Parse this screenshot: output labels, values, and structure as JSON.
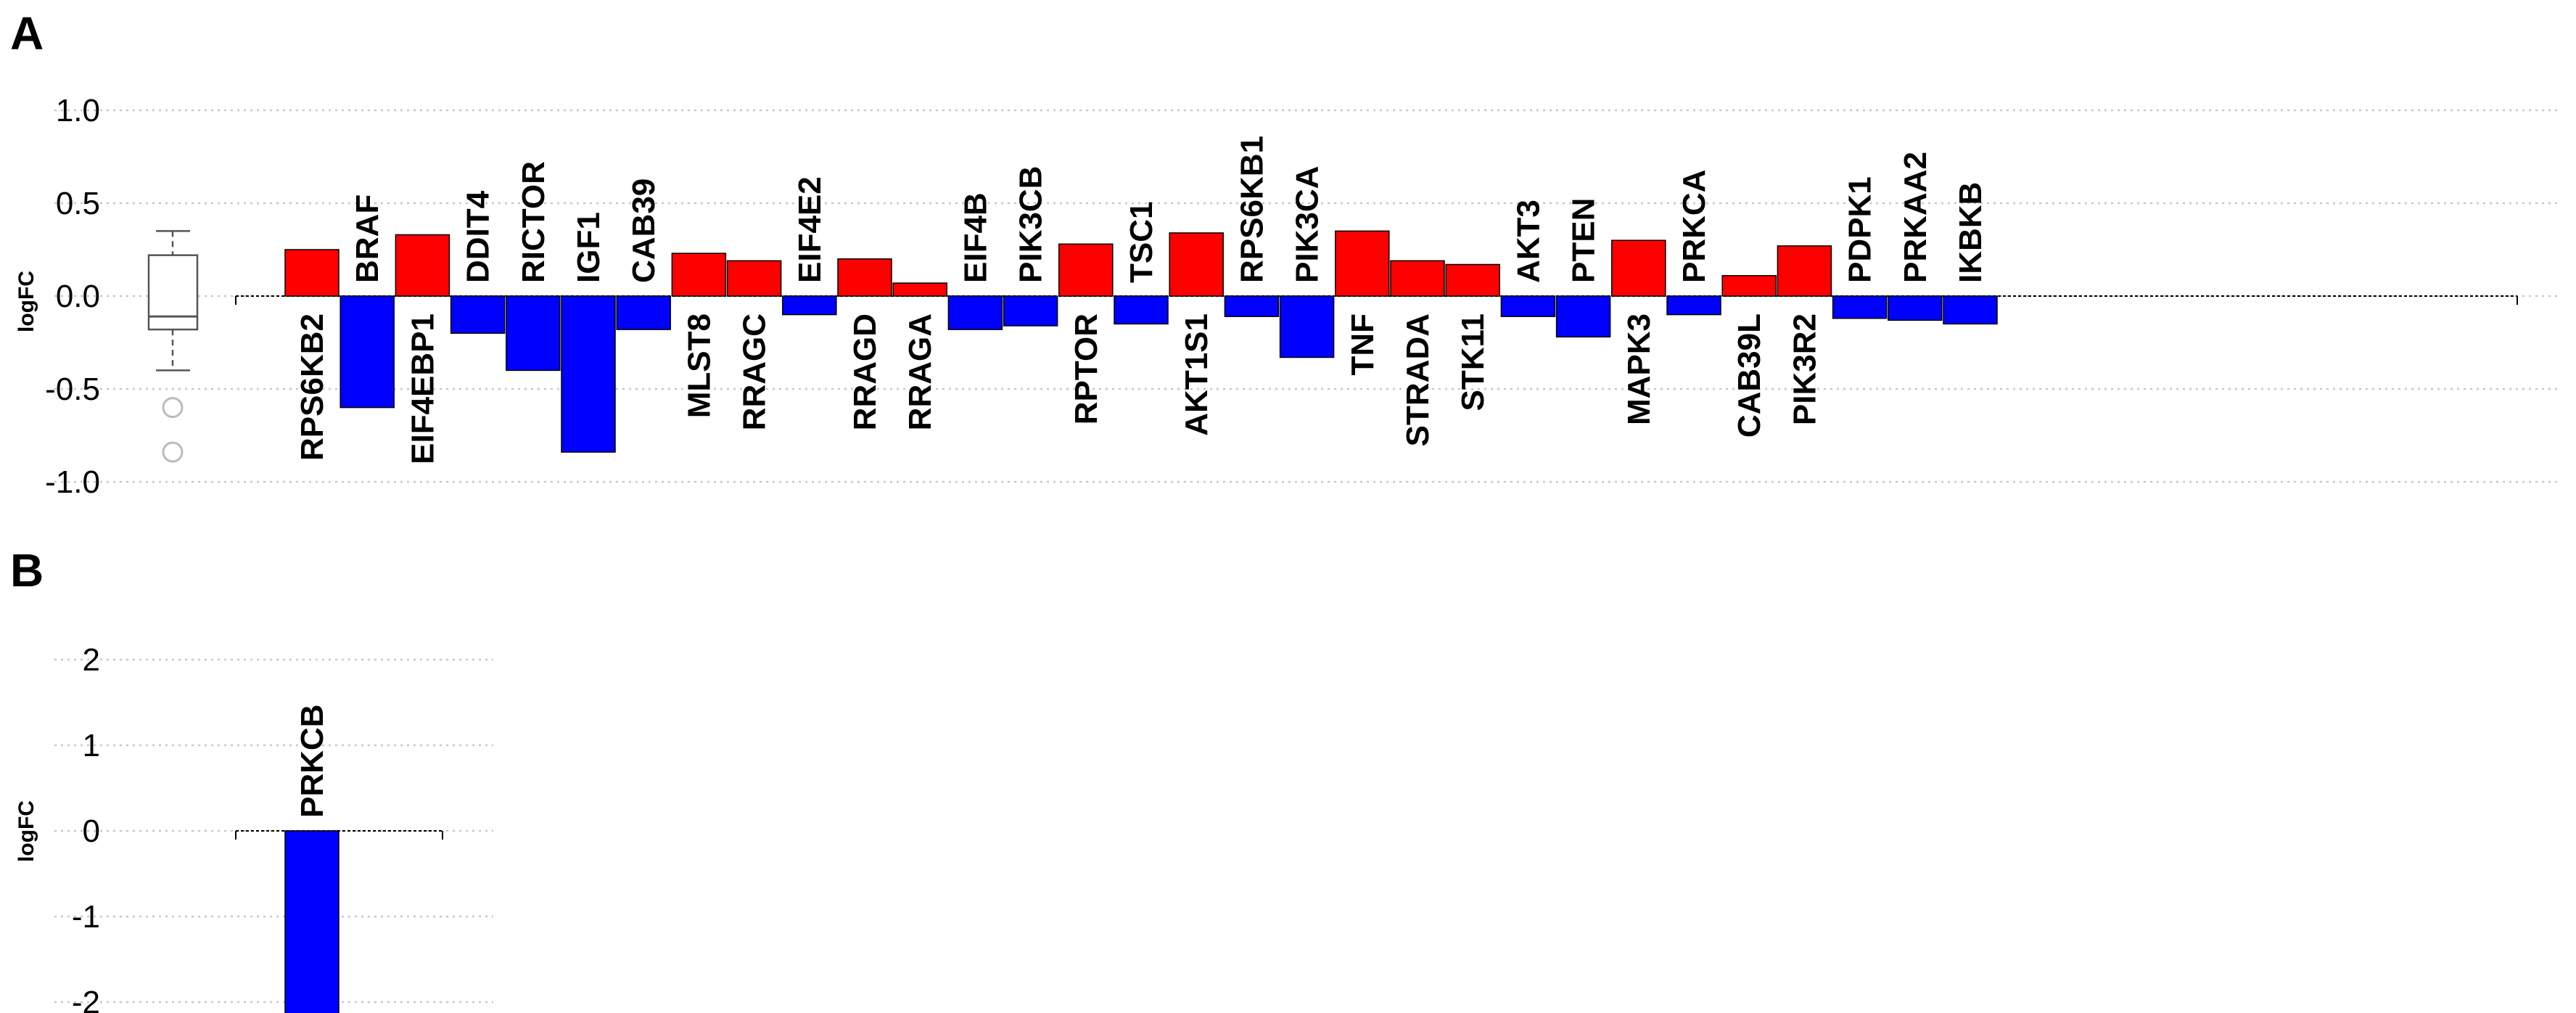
{
  "chart_data": [
    {
      "type": "bar",
      "panel_label": "A",
      "ylabel": "logFC",
      "ylim": [
        -1.0,
        1.0
      ],
      "yticks": [
        -1.0,
        -0.5,
        0.0,
        0.5,
        1.0
      ],
      "ytick_labels": [
        "-1.0",
        "-0.5",
        "0.0",
        "0.5",
        "1.0"
      ],
      "grid": true,
      "positive_color": "#ff0000",
      "negative_color": "#0000ff",
      "categories": [
        "RPS6KB2",
        "BRAF",
        "EIF4EBP1",
        "DDIT4",
        "RICTOR",
        "IGF1",
        "CAB39",
        "MLST8",
        "RRAGC",
        "EIF4E2",
        "RRAGD",
        "RRAGA",
        "EIF4B",
        "PIK3CB",
        "RPTOR",
        "TSC1",
        "AKT1S1",
        "RPS6KB1",
        "PIK3CA",
        "TNF",
        "STRADA",
        "STK11",
        "AKT3",
        "PTEN",
        "MAPK3",
        "PRKCA",
        "CAB39L",
        "PIK3R2",
        "PDPK1",
        "PRKAA2",
        "IKBKB"
      ],
      "values": [
        0.25,
        -0.6,
        0.33,
        -0.2,
        -0.4,
        -0.84,
        -0.18,
        0.23,
        0.19,
        -0.1,
        0.2,
        0.07,
        -0.18,
        -0.16,
        0.28,
        -0.15,
        0.34,
        -0.11,
        -0.33,
        0.35,
        0.19,
        0.17,
        -0.11,
        -0.22,
        0.3,
        -0.1,
        0.11,
        0.27,
        -0.12,
        -0.13,
        -0.15
      ],
      "boxplot": {
        "whisker_low": -0.4,
        "q1": -0.18,
        "median": -0.11,
        "q3": 0.22,
        "whisker_high": 0.35,
        "outliers": [
          -0.6,
          -0.84
        ]
      }
    },
    {
      "type": "bar",
      "panel_label": "B",
      "ylabel": "logFC",
      "ylim": [
        -2.3,
        2.0
      ],
      "yticks": [
        -2,
        -1,
        0,
        1,
        2
      ],
      "ytick_labels": [
        "-2",
        "-1",
        "0",
        "1",
        "2"
      ],
      "grid": true,
      "positive_color": "#ff0000",
      "negative_color": "#0000ff",
      "categories": [
        "PRKCB"
      ],
      "values": [
        -2.3
      ],
      "boxplot": {
        "whisker_low": -2.3,
        "q1": -2.3,
        "median": -2.3,
        "q3": -2.3,
        "whisker_high": -2.3,
        "outliers": []
      }
    }
  ]
}
